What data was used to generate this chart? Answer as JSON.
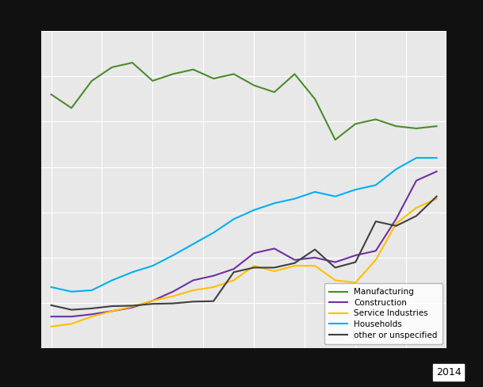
{
  "title": "",
  "years": [
    1995,
    1996,
    1997,
    1998,
    1999,
    2000,
    2001,
    2002,
    2003,
    2004,
    2005,
    2006,
    2007,
    2008,
    2009,
    2010,
    2011,
    2012,
    2013,
    2014
  ],
  "manufacturing": [
    5600,
    5300,
    5900,
    6200,
    6300,
    5900,
    6050,
    6150,
    5950,
    6050,
    5800,
    5650,
    6050,
    5500,
    4600,
    4950,
    5050,
    4900,
    4850,
    4900
  ],
  "construction": [
    700,
    700,
    750,
    820,
    900,
    1050,
    1250,
    1500,
    1600,
    1750,
    2100,
    2200,
    1950,
    2000,
    1900,
    2050,
    2150,
    2850,
    3700,
    3900
  ],
  "service_industries": [
    480,
    540,
    700,
    820,
    920,
    1050,
    1150,
    1280,
    1350,
    1500,
    1820,
    1700,
    1820,
    1820,
    1500,
    1450,
    1950,
    2750,
    3100,
    3300
  ],
  "households": [
    1350,
    1250,
    1280,
    1500,
    1680,
    1820,
    2050,
    2300,
    2550,
    2850,
    3050,
    3200,
    3300,
    3450,
    3350,
    3500,
    3600,
    3950,
    4200,
    4200
  ],
  "other": [
    950,
    850,
    880,
    930,
    940,
    980,
    990,
    1030,
    1040,
    1680,
    1780,
    1780,
    1880,
    2180,
    1780,
    1900,
    2800,
    2700,
    2920,
    3350
  ],
  "colors": {
    "manufacturing": "#4c8c2b",
    "construction": "#7030a0",
    "service_industries": "#ffc000",
    "households": "#00b0f0",
    "other": "#404040"
  },
  "legend_labels": [
    "Manufacturing",
    "Construction",
    "Service Industries",
    "Households",
    "other or unspecified"
  ],
  "annotation": "2014",
  "plot_bg": "#e8e8e8",
  "fig_bg": "#111111",
  "grid_color": "#ffffff",
  "ylim": [
    0,
    7000
  ],
  "xlim": [
    1994.5,
    2014.5
  ],
  "linewidth": 1.5
}
